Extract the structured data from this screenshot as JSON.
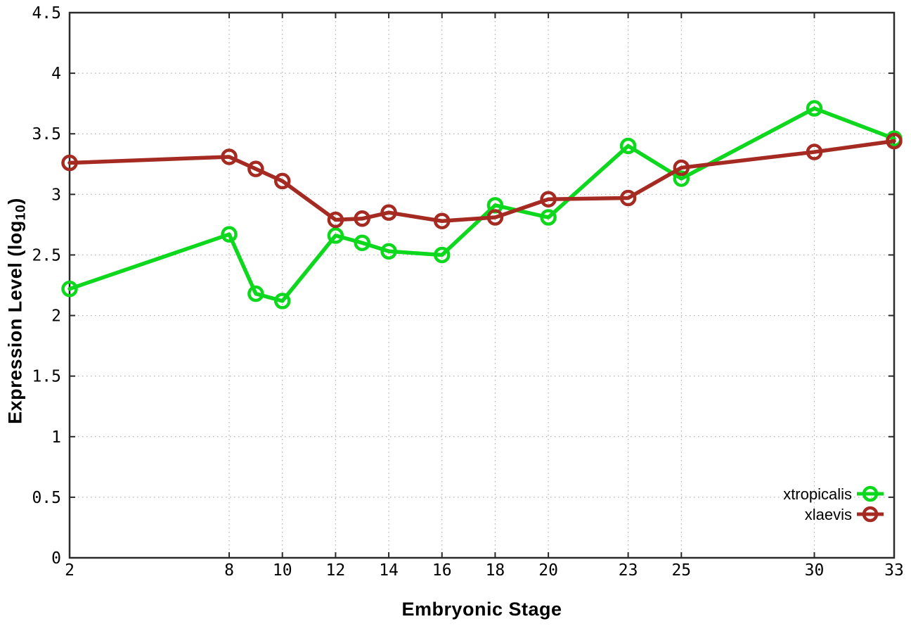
{
  "page": {
    "background": "#ffffff",
    "border_color": "#2a2a2a",
    "grid_color": "#b0b0b0",
    "text_color": "#000000"
  },
  "chart_data": {
    "type": "line",
    "title": "",
    "xlabel": "Embryonic Stage",
    "ylabel": {
      "prefix": "Expression Level (log",
      "sub": "10",
      "suffix": ")"
    },
    "xlim": [
      2,
      33
    ],
    "ylim": [
      0,
      4.5
    ],
    "grid": true,
    "legend_position": "inside-bottom-right",
    "x_ticks": [
      2,
      8,
      10,
      12,
      14,
      16,
      18,
      20,
      23,
      25,
      30,
      33
    ],
    "x_tick_labels": [
      "2",
      "8",
      "10",
      "12",
      "14",
      "16",
      "18",
      "20",
      "23",
      "25",
      "30",
      "33"
    ],
    "y_ticks": [
      0,
      0.5,
      1,
      1.5,
      2,
      2.5,
      3,
      3.5,
      4,
      4.5
    ],
    "y_tick_labels": [
      "0",
      "0.5",
      "1",
      "1.5",
      "2",
      "2.5",
      "3",
      "3.5",
      "4",
      "4.5"
    ],
    "x": [
      2,
      8,
      9,
      10,
      12,
      13,
      14,
      16,
      18,
      20,
      23,
      25,
      30,
      33
    ],
    "series": [
      {
        "name": "xtropicalis",
        "color": "#0dd81d",
        "marker": "open-circle",
        "values": [
          2.22,
          2.67,
          2.18,
          2.12,
          2.66,
          2.6,
          2.53,
          2.5,
          2.91,
          2.81,
          3.4,
          3.13,
          3.71,
          3.46
        ]
      },
      {
        "name": "xlaevis",
        "color": "#a42a22",
        "marker": "open-circle",
        "values": [
          3.26,
          3.31,
          3.21,
          3.11,
          2.79,
          2.8,
          2.85,
          2.78,
          2.81,
          2.96,
          2.97,
          3.22,
          3.35,
          3.44
        ]
      }
    ]
  }
}
